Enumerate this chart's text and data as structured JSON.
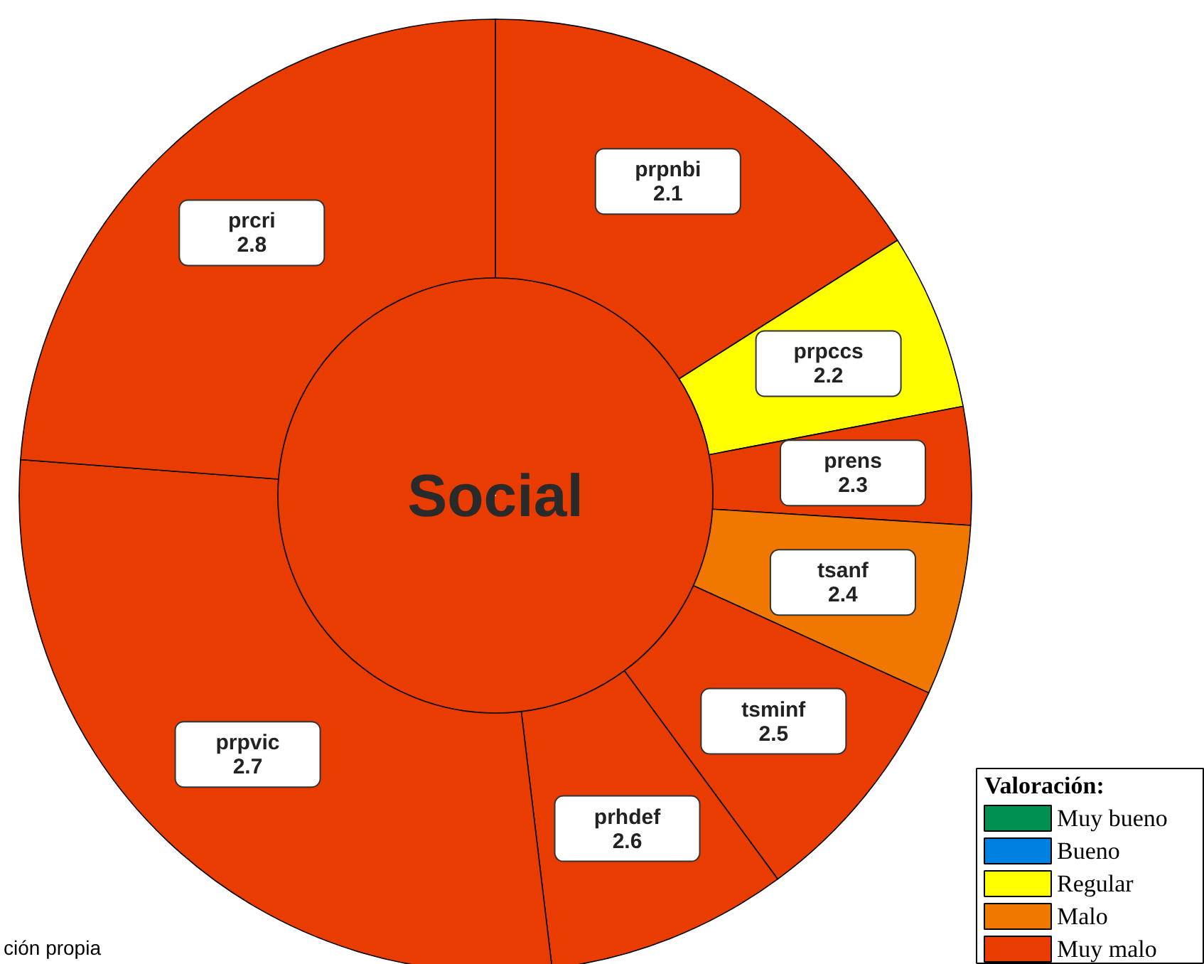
{
  "chart_data": [
    {
      "type": "donut",
      "title": "Social",
      "categories": [
        "prpnbi\n2.1",
        "prpccs\n2.2",
        "prens\n2.3",
        "tsanf\n2.4",
        "tsminf\n2.5",
        "prhdef\n2.6",
        "prpvic\n2.7",
        "prcri\n2.8"
      ],
      "values": [
        16.0,
        6.0,
        4.0,
        5.8,
        8.1,
        8.2,
        28.1,
        23.8
      ],
      "colors": [
        "#e83c00",
        "#ffff00",
        "#e83c00",
        "#f07800",
        "#e83c00",
        "#e83c00",
        "#e83c00",
        "#e83c00"
      ],
      "annotations": [
        "ción propia"
      ]
    },
    {
      "type": "other",
      "legend_title": "Valoración:",
      "categories": [
        "Muy bueno",
        "Bueno",
        "Regular",
        "Malo",
        "Muy malo"
      ],
      "colors": [
        "#009050",
        "#0080e0",
        "#ffff00",
        "#f07800",
        "#e83c00"
      ]
    }
  ]
}
